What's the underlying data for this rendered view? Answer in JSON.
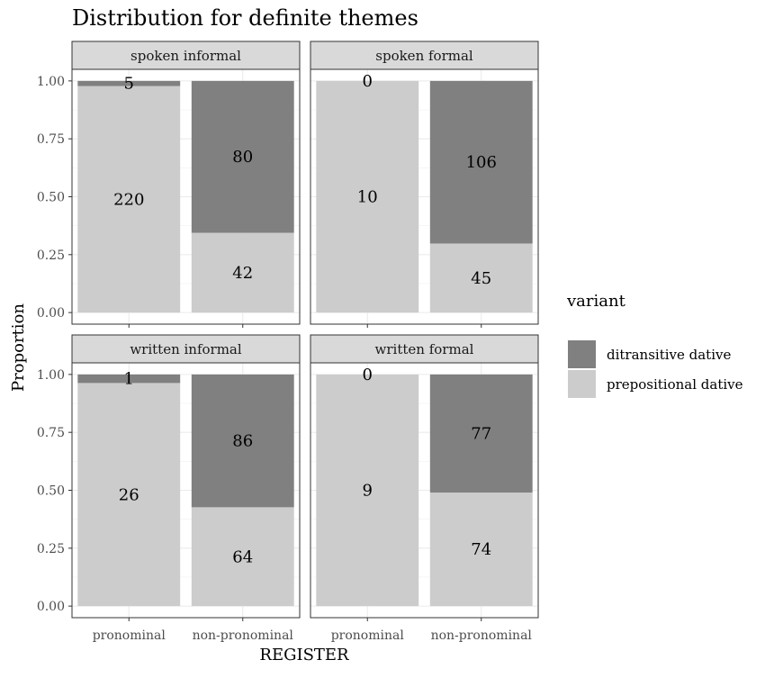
{
  "chart_data": {
    "type": "bar",
    "stacked": true,
    "normalized": true,
    "title": "Distribution for definite themes",
    "xlabel": "REGISTER",
    "ylabel": "Proportion",
    "ylim": [
      0,
      1
    ],
    "yticks": [
      "0.00",
      "0.25",
      "0.50",
      "0.75",
      "1.00"
    ],
    "categories": [
      "pronominal",
      "non-pronominal"
    ],
    "grid": true,
    "legend": {
      "title": "variant",
      "position": "right",
      "entries": [
        "ditransitive dative",
        "prepositional dative"
      ]
    },
    "colors": {
      "ditransitive dative": "#808080",
      "prepositional dative": "#cccccc"
    },
    "facets": [
      {
        "label": "spoken informal",
        "series": [
          {
            "name": "ditransitive dative",
            "values": [
              5,
              80
            ]
          },
          {
            "name": "prepositional dative",
            "values": [
              220,
              42
            ]
          }
        ]
      },
      {
        "label": "spoken formal",
        "series": [
          {
            "name": "ditransitive dative",
            "values": [
              0,
              106
            ]
          },
          {
            "name": "prepositional dative",
            "values": [
              10,
              45
            ]
          }
        ]
      },
      {
        "label": "written informal",
        "series": [
          {
            "name": "ditransitive dative",
            "values": [
              1,
              86
            ]
          },
          {
            "name": "prepositional dative",
            "values": [
              26,
              64
            ]
          }
        ]
      },
      {
        "label": "written formal",
        "series": [
          {
            "name": "ditransitive dative",
            "values": [
              0,
              77
            ]
          },
          {
            "name": "prepositional dative",
            "values": [
              9,
              74
            ]
          }
        ]
      }
    ]
  }
}
